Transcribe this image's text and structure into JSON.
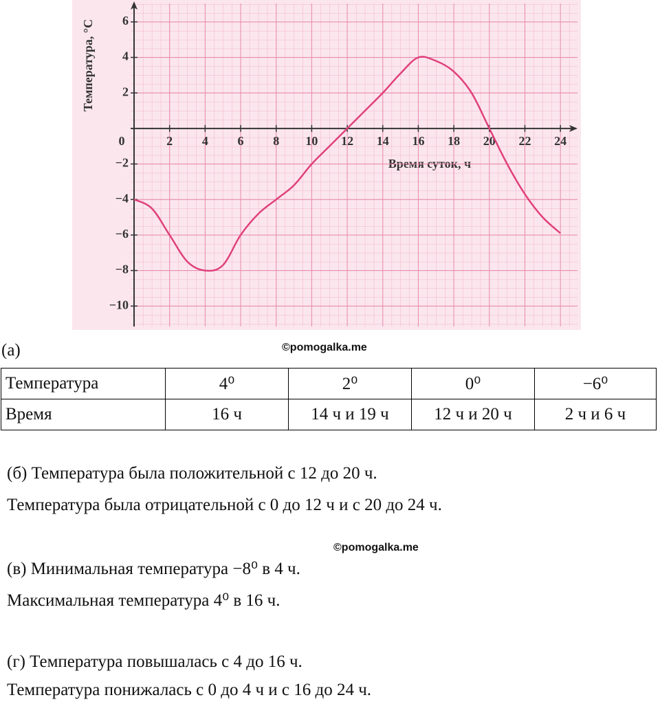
{
  "chart_data": {
    "type": "line",
    "y_label": "Температура, °С",
    "x_label": "Время суток, ч",
    "x": [
      0,
      1,
      2,
      3,
      4,
      5,
      6,
      7,
      8,
      9,
      10,
      11,
      12,
      13,
      14,
      15,
      16,
      17,
      18,
      19,
      20,
      21,
      22,
      23,
      24
    ],
    "values": [
      -4,
      -4.5,
      -6,
      -7.5,
      -8,
      -7.7,
      -6,
      -4.8,
      -4,
      -3.2,
      -2,
      -1,
      0,
      1,
      2,
      3.1,
      4,
      3.8,
      3.2,
      2,
      0,
      -2,
      -3.7,
      -5,
      -5.9
    ],
    "color": "#e0407a",
    "xlim": [
      0,
      25
    ],
    "ylim": [
      -11,
      7
    ],
    "xticks": [
      0,
      2,
      4,
      6,
      8,
      10,
      12,
      14,
      16,
      18,
      20,
      22,
      24
    ],
    "yticks": [
      {
        "value": -10,
        "label": "−10"
      },
      {
        "value": -8,
        "label": "−8"
      },
      {
        "value": -6,
        "label": "−6"
      },
      {
        "value": -4,
        "label": "−4"
      },
      {
        "value": -2,
        "label": "−2"
      },
      2,
      4,
      6
    ],
    "grid": true
  },
  "caption": "(а)",
  "watermarks": [
    "©pomogalka.me",
    "©pomogalka.me"
  ],
  "table": {
    "rows": [
      [
        "Температура",
        "4⁰",
        "2⁰",
        "0⁰",
        "−6⁰"
      ],
      [
        "Время",
        "16 ч",
        "14 ч и 19 ч",
        "12 ч и 20 ч",
        "2 ч и 6 ч"
      ]
    ]
  },
  "paragraphs": [
    "(б) Температура была положительной с 12 до 20 ч.",
    "Температура была отрицательной с 0 до 12 ч и с 20 до 24 ч.",
    "(в) Минимальная температура −8⁰ в 4 ч.",
    "Максимальная температура 4⁰ в 16 ч.",
    "(г) Температура повышалась с 4 до 16 ч.",
    "Температура понижалась с 0 до 4 ч и с 16 до 24 ч."
  ]
}
